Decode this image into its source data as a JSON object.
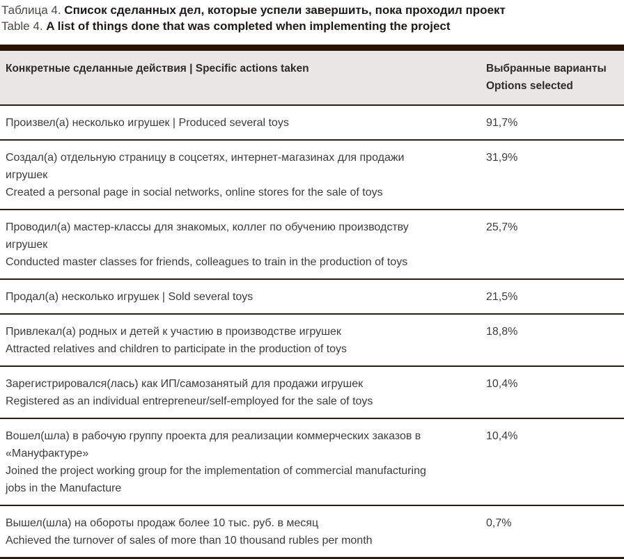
{
  "caption": {
    "ru_prefix": "Таблица 4.",
    "ru_title": "Список сделанных дел, которые успели завершить, пока проходил проект",
    "en_prefix": "Table 4.",
    "en_title": "A list of things done that was completed when implementing the project"
  },
  "table": {
    "header": {
      "actions": "Конкретные сделанные действия  |  Specific actions taken",
      "selected_lines": [
        "Выбранные варианты",
        "Options selected"
      ]
    },
    "rows": [
      {
        "lines": [
          "Произвел(а) несколько игрушек  |  Produced several toys"
        ],
        "value": "91,7%"
      },
      {
        "lines": [
          "Создал(а) отдельную страницу в соцсетях, интернет-магазинах для продажи игрушек",
          "Created a personal page in social networks, online stores for the sale of toys"
        ],
        "value": "31,9%"
      },
      {
        "lines": [
          "Проводил(а) мастер-классы для знакомых, коллег по обучению производству игрушек",
          "Conducted master classes for friends, colleagues to train in the production of toys"
        ],
        "value": "25,7%"
      },
      {
        "lines": [
          "Продал(а) несколько игрушек  |  Sold several toys"
        ],
        "value": "21,5%"
      },
      {
        "lines": [
          "Привлекал(а) родных и детей к участию в производстве игрушек",
          "Attracted relatives and children to participate in the production of toys"
        ],
        "value": "18,8%"
      },
      {
        "lines": [
          "Зарегистрировался(лась) как ИП/самозанятый для продажи игрушек",
          "Registered as an individual entrepreneur/self-employed for the sale of toys"
        ],
        "value": "10,4%"
      },
      {
        "lines": [
          "Вошел(шла) в рабочую группу проекта для реализации коммерческих заказов в «Мануфактуре»",
          "Joined the project working group for the implementation of commercial manufacturing jobs in the Manufacture"
        ],
        "value": "10,4%"
      },
      {
        "lines": [
          "Вышел(шла) на обороты продаж более 10 тыс. руб. в месяц",
          "Achieved the turnover of sales of more than 10 thousand rubles per month"
        ],
        "value": "0,7%"
      }
    ]
  },
  "colors": {
    "rule_dark": "#271405",
    "divider": "#2e1b10",
    "header_bg": "#e8e7e5",
    "body_text": "#3c3c3c"
  }
}
